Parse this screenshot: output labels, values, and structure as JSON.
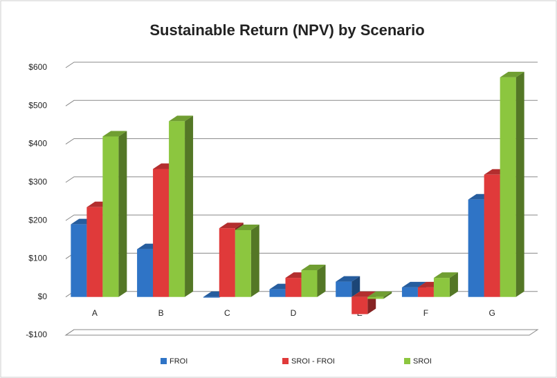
{
  "chart_data": {
    "type": "bar",
    "title": "Sustainable Return (NPV) by Scenario",
    "categories": [
      "A",
      "B",
      "C",
      "D",
      "E",
      "F",
      "G"
    ],
    "series": [
      {
        "name": "FROI",
        "color": "#2f74c6",
        "values": [
          190,
          125,
          0,
          20,
          40,
          25,
          255
        ]
      },
      {
        "name": "SROI - FROI",
        "color": "#e03a3a",
        "values": [
          235,
          335,
          180,
          50,
          -45,
          25,
          320
        ]
      },
      {
        "name": "SROI",
        "color": "#8cc63f",
        "values": [
          420,
          460,
          175,
          70,
          -5,
          50,
          575
        ]
      }
    ],
    "ylim": [
      -100,
      600
    ],
    "yticks": [
      {
        "value": -100,
        "label": "-$100"
      },
      {
        "value": 0,
        "label": "$0"
      },
      {
        "value": 100,
        "label": "$100"
      },
      {
        "value": 200,
        "label": "$200"
      },
      {
        "value": 300,
        "label": "$300"
      },
      {
        "value": 400,
        "label": "$400"
      },
      {
        "value": 500,
        "label": "$500"
      },
      {
        "value": 600,
        "label": "$600"
      }
    ],
    "grid": true,
    "legend": "bottom"
  }
}
